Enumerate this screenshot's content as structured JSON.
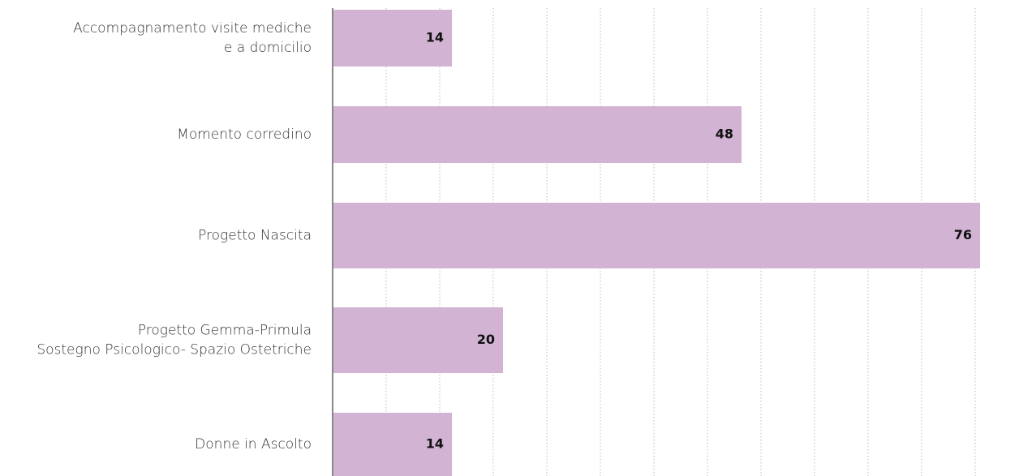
{
  "chart_data": {
    "type": "bar",
    "orientation": "horizontal",
    "categories": [
      [
        "Accompagnamento visite mediche",
        "e a domicilio"
      ],
      [
        "Momento corredino"
      ],
      [
        "Progetto Nascita"
      ],
      [
        "Progetto Gemma-Primula",
        "Sostegno Psicologico- Spazio Ostetriche"
      ],
      [
        "Donne in Ascolto"
      ]
    ],
    "values": [
      14,
      48,
      76,
      20,
      14
    ],
    "xlim": [
      0,
      76
    ],
    "grid": true,
    "bar_color": "#d2b3d4",
    "gridline_color": "#bbbbbb",
    "axis_color": "#888888"
  }
}
